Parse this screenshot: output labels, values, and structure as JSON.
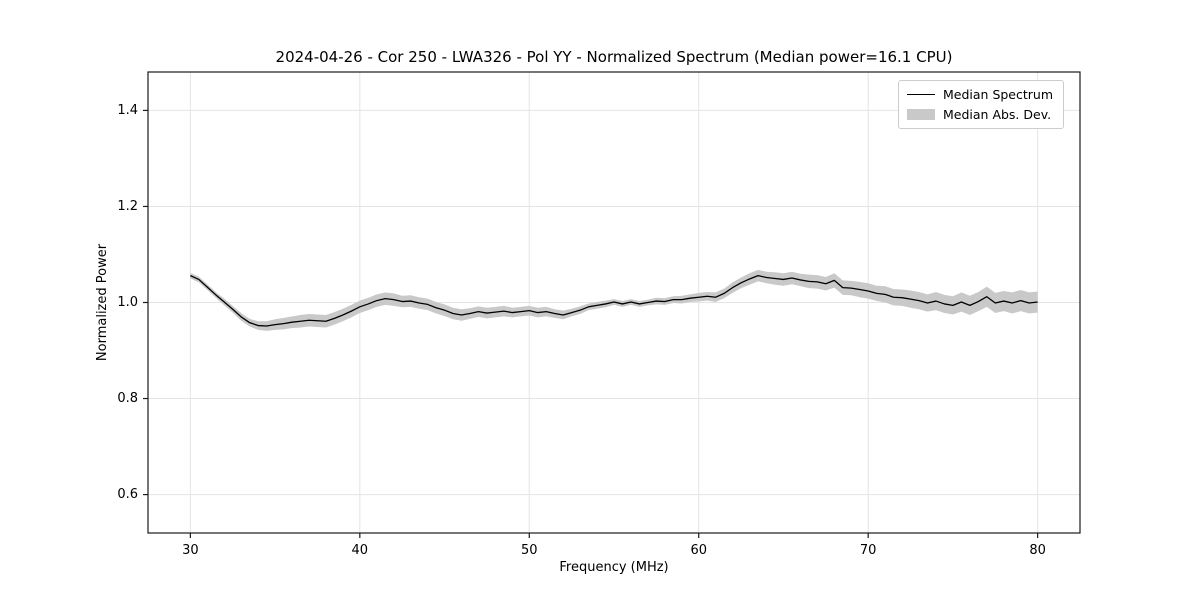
{
  "chart_data": {
    "type": "line",
    "title": "2024-04-26 - Cor 250 - LWA326 - Pol YY - Normalized Spectrum (Median power=16.1 CPU)",
    "xlabel": "Frequency (MHz)",
    "ylabel": "Normalized Power",
    "xlim": [
      27.5,
      82.5
    ],
    "ylim": [
      0.52,
      1.48
    ],
    "xticks": [
      30,
      40,
      50,
      60,
      70,
      80
    ],
    "yticks": [
      0.6,
      0.8,
      1.0,
      1.2,
      1.4
    ],
    "grid": true,
    "colors": {
      "line": "#000000",
      "band": "#c9c9c9",
      "grid": "#e4e4e4",
      "frame": "#1a1a1a",
      "background": "#ffffff"
    },
    "legend": {
      "position": "upper right",
      "entries": [
        {
          "label": "Median Spectrum",
          "type": "line",
          "color": "#000000"
        },
        {
          "label": "Median Abs. Dev.",
          "type": "patch",
          "color": "#c9c9c9"
        }
      ]
    },
    "x": [
      30,
      30.5,
      31,
      31.5,
      32,
      32.5,
      33,
      33.5,
      34,
      34.5,
      35,
      35.5,
      36,
      36.5,
      37,
      37.5,
      38,
      38.5,
      39,
      39.5,
      40,
      40.5,
      41,
      41.5,
      42,
      42.5,
      43,
      43.5,
      44,
      44.5,
      45,
      45.5,
      46,
      46.5,
      47,
      47.5,
      48,
      48.5,
      49,
      49.5,
      50,
      50.5,
      51,
      51.5,
      52,
      52.5,
      53,
      53.5,
      54,
      54.5,
      55,
      55.5,
      56,
      56.5,
      57,
      57.5,
      58,
      58.5,
      59,
      59.5,
      60,
      60.5,
      61,
      61.5,
      62,
      62.5,
      63,
      63.5,
      64,
      64.5,
      65,
      65.5,
      66,
      66.5,
      67,
      67.5,
      68,
      68.5,
      69,
      69.5,
      70,
      70.5,
      71,
      71.5,
      72,
      72.5,
      73,
      73.5,
      74,
      74.5,
      75,
      75.5,
      76,
      76.5,
      77,
      77.5,
      78,
      78.5,
      79,
      79.5,
      80
    ],
    "series": [
      {
        "name": "Median Spectrum",
        "values": [
          1.056,
          1.048,
          1.032,
          1.016,
          1.001,
          0.986,
          0.97,
          0.958,
          0.952,
          0.951,
          0.954,
          0.956,
          0.959,
          0.961,
          0.963,
          0.962,
          0.961,
          0.967,
          0.974,
          0.982,
          0.991,
          0.997,
          1.004,
          1.008,
          1.006,
          1.002,
          1.003,
          0.999,
          0.996,
          0.989,
          0.984,
          0.977,
          0.974,
          0.977,
          0.981,
          0.978,
          0.98,
          0.982,
          0.979,
          0.981,
          0.983,
          0.979,
          0.981,
          0.977,
          0.974,
          0.979,
          0.984,
          0.991,
          0.994,
          0.997,
          1.001,
          0.997,
          1.001,
          0.997,
          1.0,
          1.003,
          1.002,
          1.006,
          1.006,
          1.009,
          1.011,
          1.013,
          1.011,
          1.019,
          1.031,
          1.041,
          1.049,
          1.056,
          1.052,
          1.05,
          1.048,
          1.051,
          1.047,
          1.044,
          1.043,
          1.039,
          1.046,
          1.031,
          1.03,
          1.027,
          1.024,
          1.019,
          1.017,
          1.011,
          1.01,
          1.007,
          1.004,
          0.999,
          1.003,
          0.997,
          0.994,
          1.001,
          0.994,
          1.002,
          1.012,
          0.999,
          1.003,
          0.999,
          1.004,
          0.999,
          1.001
        ]
      }
    ],
    "band": {
      "name": "Median Abs. Dev.",
      "half_width": [
        0.006,
        0.006,
        0.006,
        0.006,
        0.007,
        0.007,
        0.008,
        0.008,
        0.009,
        0.01,
        0.011,
        0.012,
        0.012,
        0.013,
        0.013,
        0.013,
        0.013,
        0.013,
        0.013,
        0.013,
        0.013,
        0.013,
        0.013,
        0.013,
        0.013,
        0.012,
        0.012,
        0.012,
        0.012,
        0.012,
        0.012,
        0.012,
        0.012,
        0.011,
        0.011,
        0.011,
        0.011,
        0.011,
        0.01,
        0.01,
        0.01,
        0.01,
        0.01,
        0.009,
        0.009,
        0.008,
        0.008,
        0.007,
        0.007,
        0.007,
        0.006,
        0.006,
        0.006,
        0.006,
        0.006,
        0.007,
        0.007,
        0.007,
        0.008,
        0.008,
        0.009,
        0.009,
        0.01,
        0.01,
        0.011,
        0.011,
        0.012,
        0.012,
        0.012,
        0.013,
        0.013,
        0.013,
        0.013,
        0.014,
        0.014,
        0.014,
        0.015,
        0.015,
        0.015,
        0.016,
        0.016,
        0.016,
        0.017,
        0.017,
        0.017,
        0.018,
        0.018,
        0.018,
        0.019,
        0.019,
        0.019,
        0.02,
        0.02,
        0.02,
        0.021,
        0.021,
        0.021,
        0.022,
        0.022,
        0.022,
        0.022
      ]
    }
  }
}
